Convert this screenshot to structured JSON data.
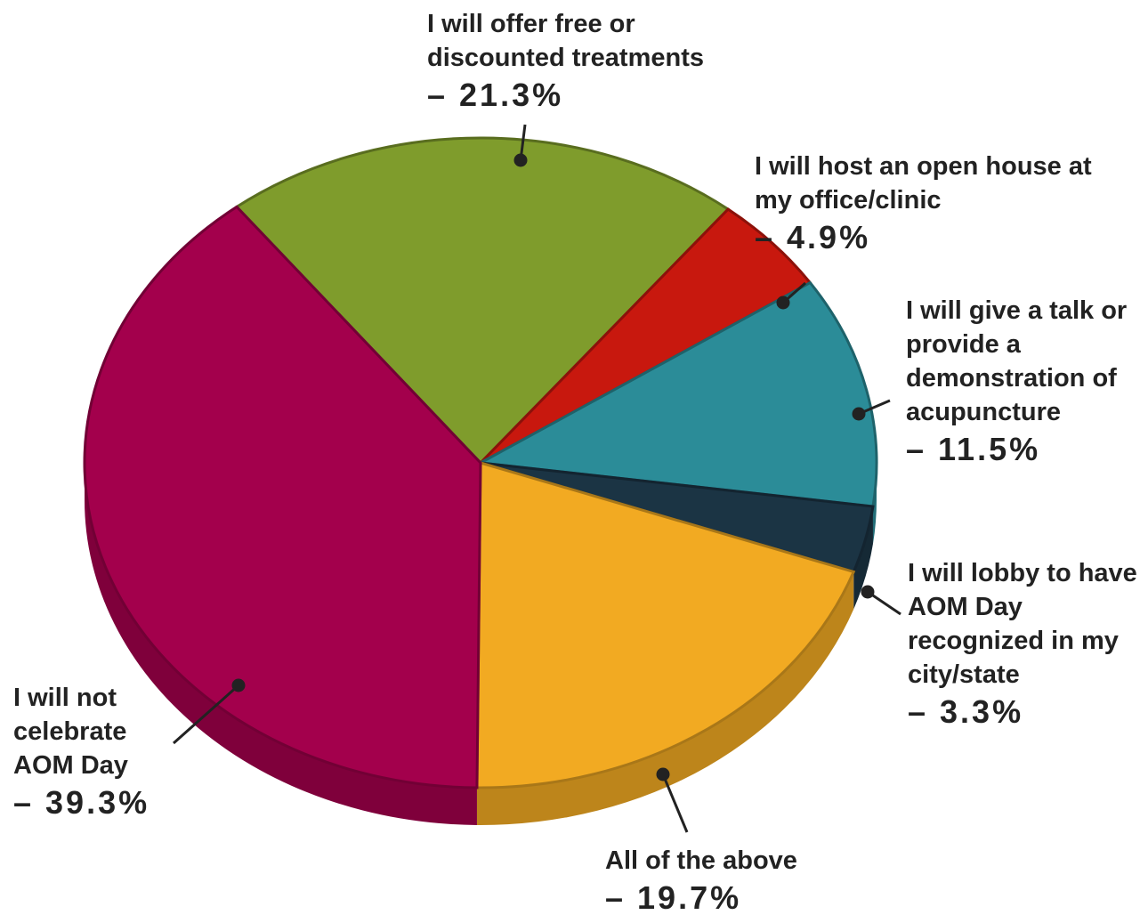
{
  "chart_data": {
    "type": "pie",
    "categories": [
      "I will offer free or discounted treatments",
      "I will host an open house at my office/clinic",
      "I will give a talk or provide a demonstration of acupuncture",
      "I will lobby to have AOM Day recognized in my city/state",
      "All of the above",
      "I will not celebrate AOM Day"
    ],
    "values": [
      21.3,
      4.9,
      11.5,
      3.3,
      19.7,
      39.3
    ],
    "value_labels": [
      "– 21.3%",
      "– 4.9%",
      "– 11.5%",
      "– 3.3%",
      "– 19.7%",
      "– 39.3%"
    ],
    "colors": [
      "#7f9c2c",
      "#c8180e",
      "#2b8c98",
      "#1b3444",
      "#f2aa22",
      "#a3004c"
    ]
  }
}
